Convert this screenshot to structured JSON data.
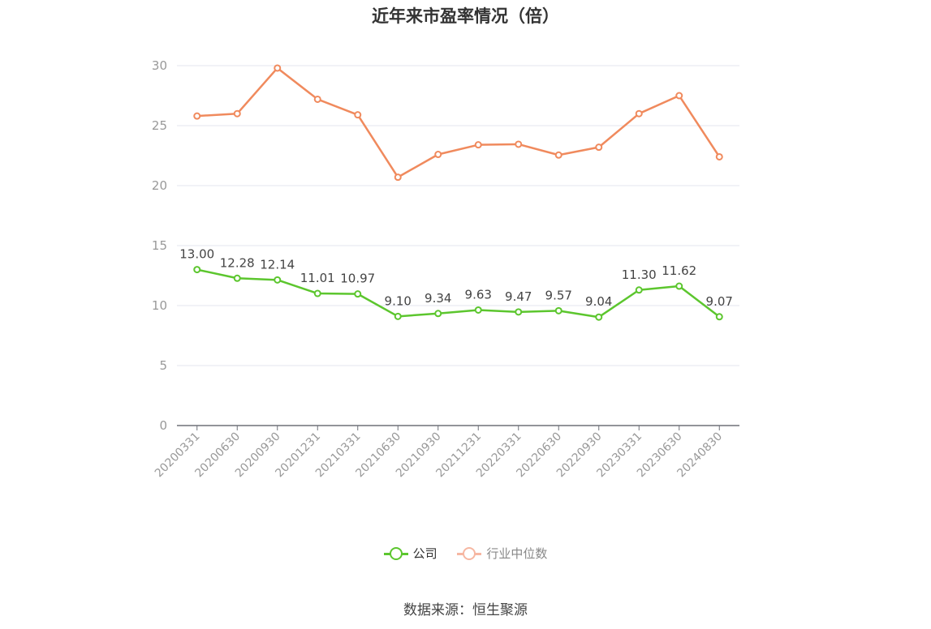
{
  "title": "近年来市盈率情况（倍）",
  "source": "数据来源：恒生聚源",
  "colors": {
    "company": "#5cc62e",
    "industry": "#f08a5d",
    "industry_legend": "#f6b7a2",
    "axis": "#999999",
    "grid": "#e3e6ef"
  },
  "chart_data": {
    "type": "line",
    "title": "近年来市盈率情况（倍）",
    "xlabel": "",
    "ylabel": "",
    "ylim": [
      0,
      30
    ],
    "yticks": [
      0,
      5,
      10,
      15,
      20,
      25,
      30
    ],
    "grid": true,
    "legend_position": "bottom",
    "categories": [
      "20200331",
      "20200630",
      "20200930",
      "20201231",
      "20210331",
      "20210630",
      "20210930",
      "20211231",
      "20220331",
      "20220630",
      "20220930",
      "20230331",
      "20230630",
      "20240830"
    ],
    "series": [
      {
        "name": "公司",
        "values": [
          13.0,
          12.28,
          12.14,
          11.01,
          10.97,
          9.1,
          9.34,
          9.63,
          9.47,
          9.57,
          9.04,
          11.3,
          11.62,
          9.07
        ],
        "labels": [
          "13.00",
          "12.28",
          "12.14",
          "11.01",
          "10.97",
          "9.10",
          "9.34",
          "9.63",
          "9.47",
          "9.57",
          "9.04",
          "11.30",
          "11.62",
          "9.07"
        ]
      },
      {
        "name": "行业中位数",
        "values": [
          25.8,
          26.0,
          29.8,
          27.2,
          25.9,
          20.7,
          22.6,
          23.4,
          23.45,
          22.55,
          23.2,
          26.0,
          27.5,
          22.4
        ]
      }
    ]
  }
}
